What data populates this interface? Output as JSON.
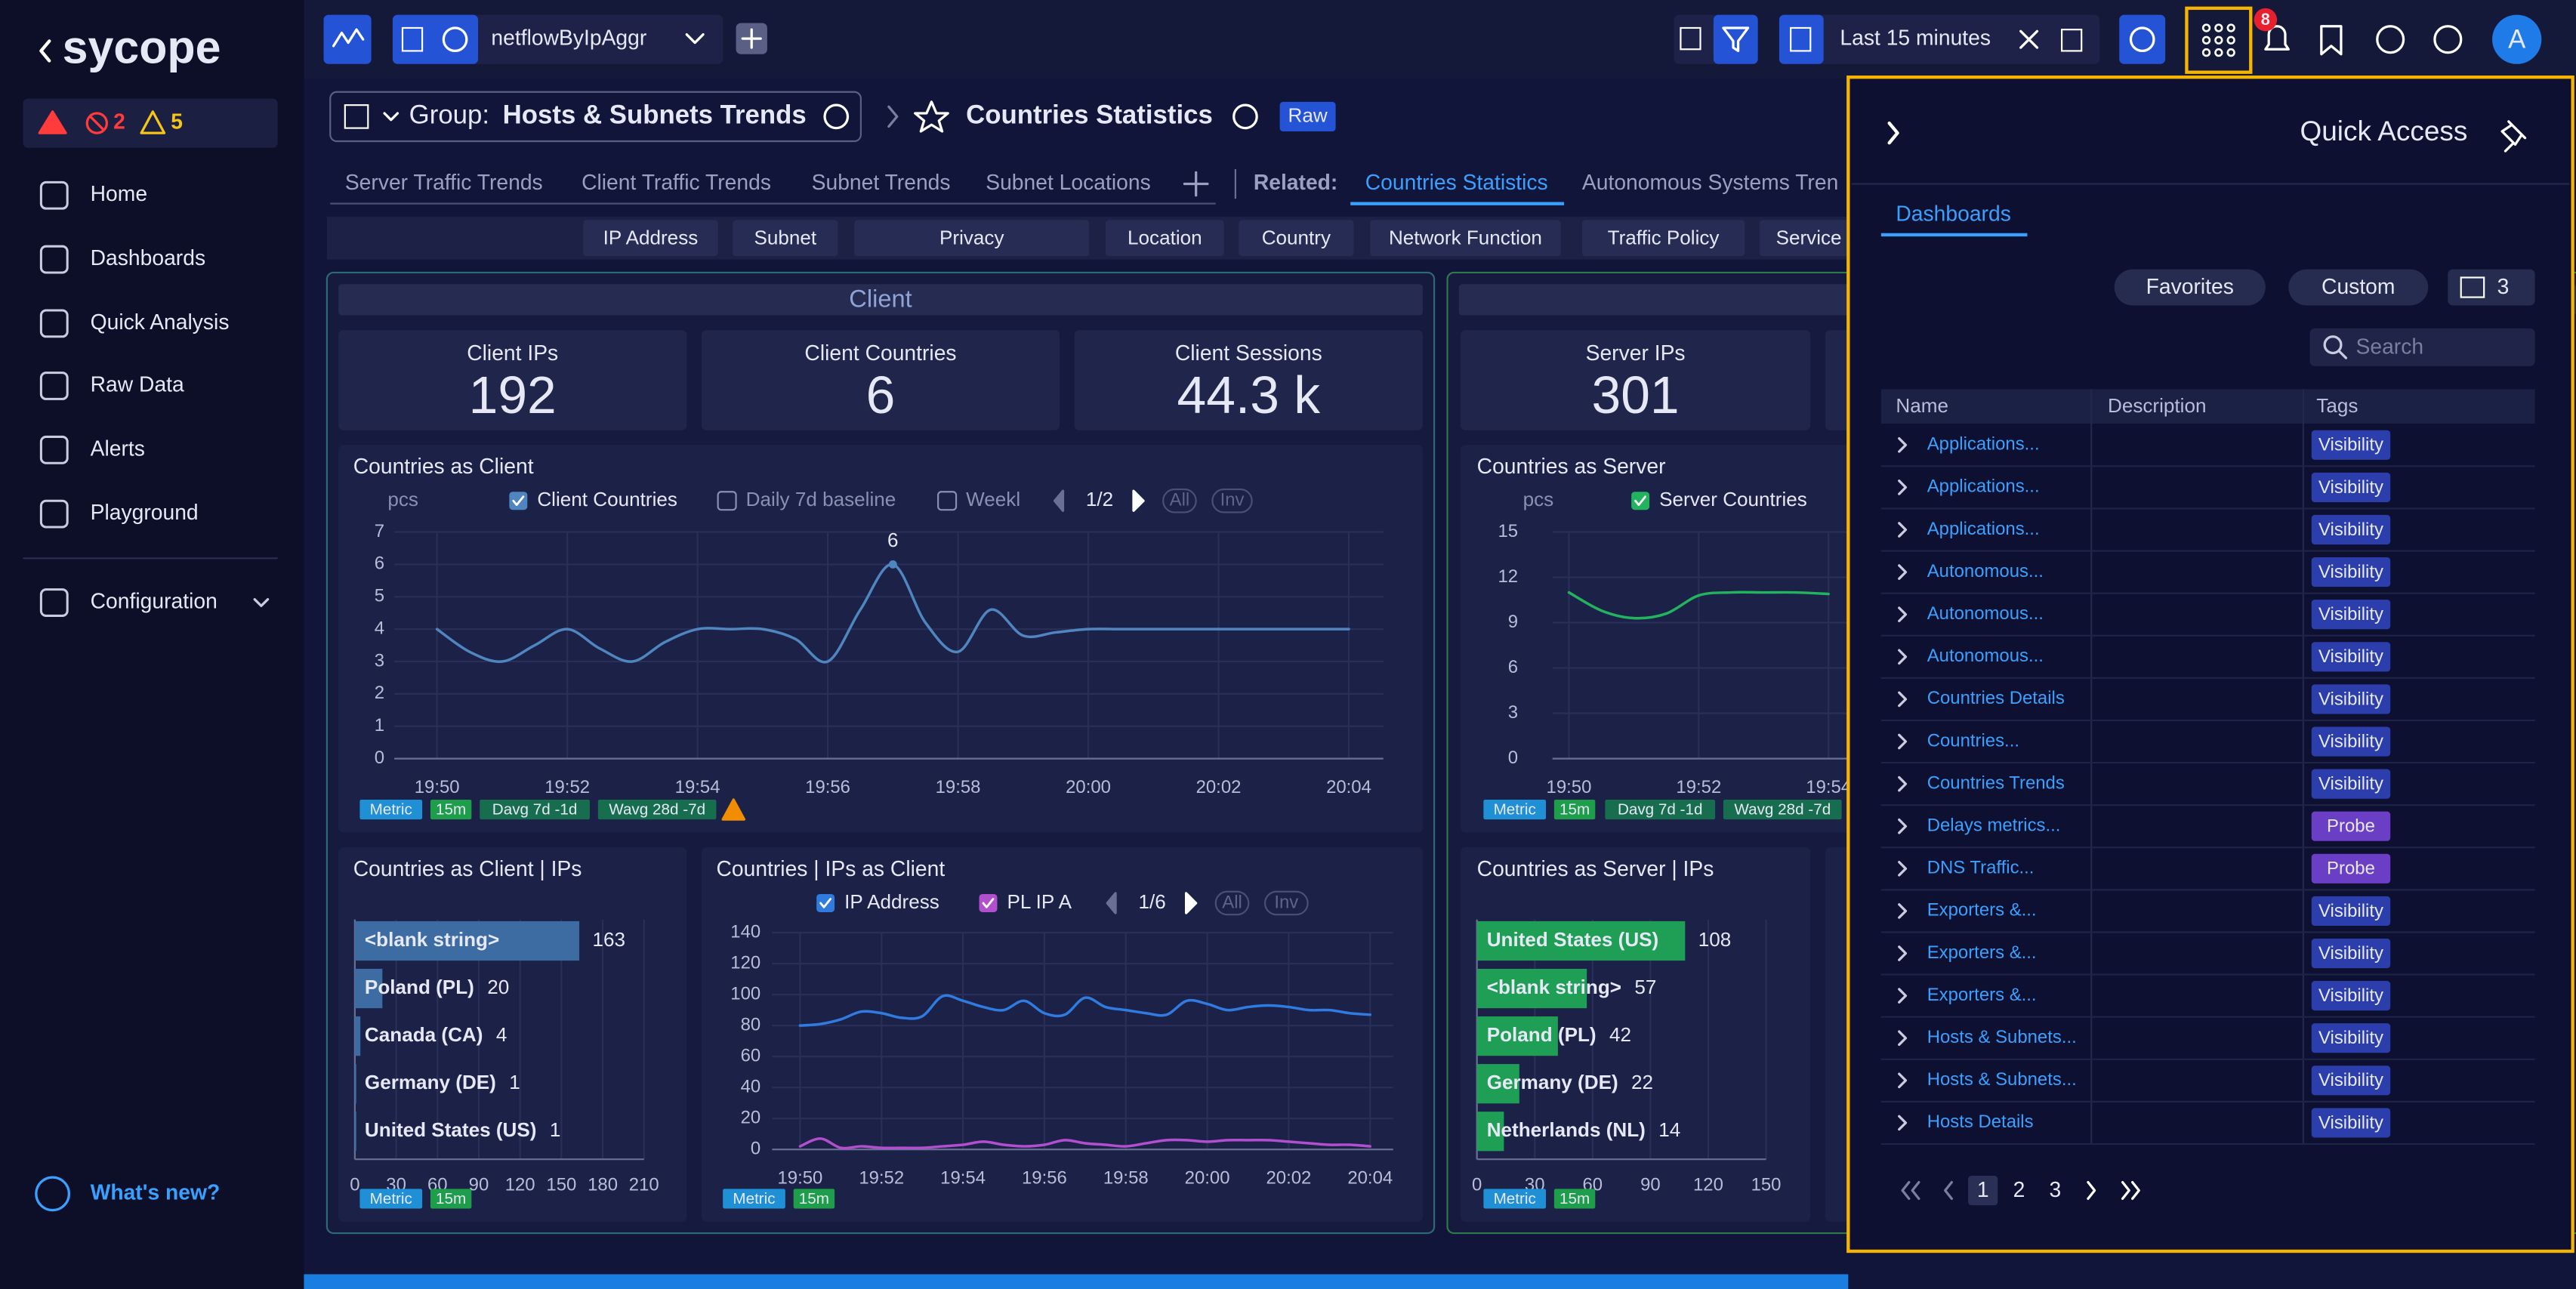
{
  "sidebar": {
    "logo": "sycope",
    "alerts": {
      "errors": "2",
      "warnings": "5"
    },
    "nav": [
      "Home",
      "Dashboards",
      "Quick Analysis",
      "Raw Data",
      "Alerts",
      "Playground",
      "Configuration"
    ],
    "whats_new": "What's new?"
  },
  "topbar": {
    "source": "netflowByIpAggr",
    "time_range": "Last 15 minutes",
    "notifications": "8",
    "avatar": "A"
  },
  "header": {
    "group_label": "Group:",
    "group_name": "Hosts & Subnets Trends",
    "title": "Countries Statistics",
    "badge": "Raw"
  },
  "tabs": {
    "items": [
      "Server Traffic Trends",
      "Client Traffic Trends",
      "Subnet Trends",
      "Subnet Locations"
    ],
    "related_label": "Related:",
    "related": [
      "Countries Statistics",
      "Autonomous Systems Tren"
    ]
  },
  "filters": [
    "IP Address",
    "Subnet",
    "Privacy",
    "Location",
    "Country",
    "Network Function",
    "Traffic Policy",
    "Service"
  ],
  "client": {
    "title": "Client",
    "kpis": [
      {
        "label": "Client IPs",
        "value": "192"
      },
      {
        "label": "Client Countries",
        "value": "6"
      },
      {
        "label": "Client Sessions",
        "value": "44.3 k"
      }
    ],
    "countries_chart": {
      "type": "line",
      "title": "Countries as Client",
      "unit": "pcs",
      "categories": [
        "19:50",
        null,
        null,
        null,
        "19:52",
        null,
        null,
        null,
        "19:54",
        null,
        null,
        null,
        "19:56",
        null,
        null,
        null,
        "19:58",
        null,
        null,
        null,
        "20:00",
        null,
        null,
        null,
        "20:02",
        null,
        null,
        null,
        "20:04"
      ],
      "ylim": [
        0,
        7
      ],
      "yticks": [
        0,
        1,
        2,
        3,
        4,
        5,
        6,
        7
      ],
      "series": [
        {
          "name": "Client Countries",
          "checked": true,
          "color": "#4f86c0",
          "values": [
            4,
            3.3,
            3,
            3.5,
            4,
            3.4,
            3,
            3.6,
            4,
            4,
            4,
            3.7,
            3,
            4.6,
            6,
            4.2,
            3.3,
            4.6,
            3.8,
            3.9,
            4,
            4,
            4,
            4,
            4,
            4,
            4,
            4,
            4
          ],
          "value_labels": [
            null,
            null,
            null,
            null,
            null,
            null,
            null,
            null,
            null,
            null,
            null,
            null,
            null,
            null,
            "6",
            null,
            null,
            null,
            null,
            null,
            null,
            null,
            null,
            null,
            null,
            null,
            null,
            null,
            null
          ]
        },
        {
          "name": "Daily 7d baseline",
          "checked": false
        },
        {
          "name": "Weekl",
          "checked": false
        }
      ],
      "pager": "1/2",
      "controls": [
        "All",
        "Inv"
      ],
      "tags": [
        "Metric",
        "15m",
        "Davg 7d -1d",
        "Wavg 28d -7d"
      ]
    },
    "ips_bar": {
      "type": "bar",
      "orientation": "horizontal",
      "title": "Countries as Client | IPs",
      "categories": [
        "<blank string>",
        "Poland (PL)",
        "Canada (CA)",
        "Germany (DE)",
        "United States (US)"
      ],
      "values": [
        163,
        20,
        4,
        1,
        1
      ],
      "color": "#3d6ca3",
      "xlim": [
        0,
        210
      ],
      "xticks": [
        0,
        30,
        60,
        90,
        120,
        150,
        180,
        210
      ],
      "tags": [
        "Metric",
        "15m"
      ]
    },
    "ips_line": {
      "type": "line",
      "title": "Countries | IPs as Client",
      "categories": [
        "19:50",
        null,
        null,
        null,
        "19:52",
        null,
        null,
        null,
        "19:54",
        null,
        null,
        null,
        "19:56",
        null,
        null,
        null,
        "19:58",
        null,
        null,
        null,
        "20:00",
        null,
        null,
        null,
        "20:02",
        null,
        null,
        null,
        "20:04"
      ],
      "ylim": [
        0,
        140
      ],
      "yticks": [
        0,
        20,
        40,
        60,
        80,
        100,
        120,
        140
      ],
      "series": [
        {
          "name": "IP Address",
          "checked": true,
          "color": "#2f7be0",
          "values": [
            80,
            81,
            84,
            89,
            88,
            85,
            86,
            99,
            96,
            92,
            90,
            96,
            88,
            87,
            98,
            92,
            90,
            88,
            87,
            96,
            94,
            90,
            92,
            93,
            92,
            90,
            90,
            88,
            87
          ]
        },
        {
          "name": "PL  IP A",
          "checked": true,
          "color": "#b24fcf",
          "values": [
            2,
            7,
            1,
            2,
            1,
            1,
            1,
            2,
            3,
            5,
            3,
            2,
            3,
            6,
            4,
            3,
            2,
            4,
            6,
            6,
            5,
            6,
            6,
            6,
            5,
            4,
            3,
            3,
            2
          ]
        }
      ],
      "pager": "1/6",
      "controls": [
        "All",
        "Inv"
      ],
      "tags": [
        "Metric",
        "15m"
      ]
    }
  },
  "server": {
    "kpis": [
      {
        "label": "Server IPs",
        "value": "301"
      }
    ],
    "countries_chart": {
      "type": "line",
      "title": "Countries as Server",
      "unit": "pcs",
      "categories": [
        "19:50",
        null,
        null,
        null,
        "19:52",
        null,
        null,
        null,
        "19:54"
      ],
      "ylim": [
        0,
        15
      ],
      "yticks": [
        0,
        3,
        6,
        9,
        12,
        15
      ],
      "series": [
        {
          "name": "Server Countries",
          "checked": true,
          "color": "#22b35e",
          "values": [
            11,
            9.8,
            9.3,
            9.6,
            10.8,
            11,
            11,
            11,
            10.9
          ]
        }
      ],
      "tags": [
        "Metric",
        "15m",
        "Davg 7d -1d",
        "Wavg 28d -7d"
      ]
    },
    "ips_bar": {
      "type": "bar",
      "orientation": "horizontal",
      "title": "Countries as Server | IPs",
      "categories": [
        "United States (US)",
        "<blank string>",
        "Poland (PL)",
        "Germany (DE)",
        "Netherlands (NL)"
      ],
      "values": [
        108,
        57,
        42,
        22,
        14
      ],
      "color": "#1f9e55",
      "xlim": [
        0,
        150
      ],
      "xticks": [
        0,
        30,
        60,
        90,
        120,
        150
      ],
      "tags": [
        "Metric",
        "15m"
      ]
    }
  },
  "quick_access": {
    "title": "Quick Access",
    "tab": "Dashboards",
    "buttons": [
      "Favorites",
      "Custom"
    ],
    "columns": "3",
    "search_placeholder": "Search",
    "headers": [
      "Name",
      "Description",
      "Tags"
    ],
    "tag_colors": {
      "Visibility": "#2c3eab",
      "Probe": "#6b3ec6"
    },
    "rows": [
      {
        "name": "Applications...",
        "tag": "Visibility"
      },
      {
        "name": "Applications...",
        "tag": "Visibility"
      },
      {
        "name": "Applications...",
        "tag": "Visibility"
      },
      {
        "name": "Autonomous...",
        "tag": "Visibility"
      },
      {
        "name": "Autonomous...",
        "tag": "Visibility"
      },
      {
        "name": "Autonomous...",
        "tag": "Visibility"
      },
      {
        "name": "Countries Details",
        "tag": "Visibility"
      },
      {
        "name": "Countries...",
        "tag": "Visibility"
      },
      {
        "name": "Countries Trends",
        "tag": "Visibility"
      },
      {
        "name": "Delays metrics...",
        "tag": "Probe"
      },
      {
        "name": "DNS Traffic...",
        "tag": "Probe"
      },
      {
        "name": "Exporters &...",
        "tag": "Visibility"
      },
      {
        "name": "Exporters &...",
        "tag": "Visibility"
      },
      {
        "name": "Exporters &...",
        "tag": "Visibility"
      },
      {
        "name": "Hosts & Subnets...",
        "tag": "Visibility"
      },
      {
        "name": "Hosts & Subnets...",
        "tag": "Visibility"
      },
      {
        "name": "Hosts Details",
        "tag": "Visibility"
      }
    ],
    "pages": [
      "1",
      "2",
      "3"
    ]
  }
}
